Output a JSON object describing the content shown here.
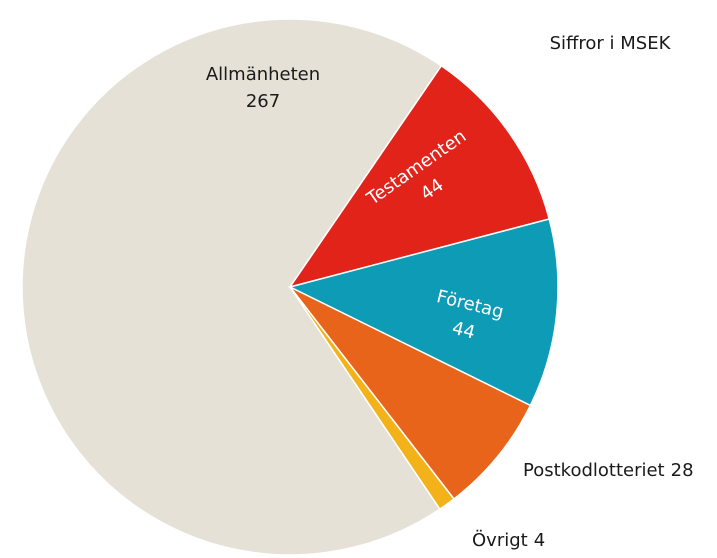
{
  "chart_data": {
    "type": "pie",
    "subtitle": "Siffror i MSEK",
    "categories": [
      "Allmänheten",
      "Testamenten",
      "Företag",
      "Postkodlotteriet",
      "Övrigt"
    ],
    "values": [
      267,
      44,
      44,
      28,
      4
    ],
    "colors": [
      "#e6e1d7",
      "#e2231a",
      "#0e9bb5",
      "#e8641b",
      "#f3b21a"
    ]
  }
}
